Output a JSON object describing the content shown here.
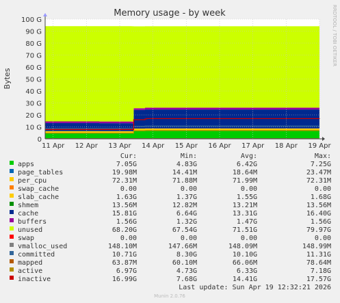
{
  "chart_data": {
    "type": "area",
    "title": "Memory usage - by week",
    "ylabel": "Bytes",
    "side_label": "RRDTOOL / TOBI OETIKER",
    "y_ticks": [
      "0",
      "10 G",
      "20 G",
      "30 G",
      "40 G",
      "50 G",
      "60 G",
      "70 G",
      "80 G",
      "90 G",
      "100 G"
    ],
    "ylim": [
      0,
      100
    ],
    "x_ticks": [
      "11 Apr",
      "12 Apr",
      "13 Apr",
      "14 Apr",
      "15 Apr",
      "16 Apr",
      "17 Apr",
      "18 Apr",
      "19 Apr"
    ],
    "x": [
      0,
      1.6,
      1.63,
      2.6,
      2.66,
      3.0,
      3.05,
      3.2,
      7.0,
      8.24
    ],
    "series": [
      {
        "name": "apps",
        "color": "#00cc00",
        "values": [
          5.0,
          5.0,
          4.9,
          4.85,
          6.9,
          7.0,
          7.0,
          7.0,
          7.0,
          7.05
        ]
      },
      {
        "name": "page_tables",
        "color": "#0066b3",
        "values": [
          0.015,
          0.015,
          0.015,
          0.015,
          0.02,
          0.02,
          0.02,
          0.02,
          0.02,
          0.02
        ]
      },
      {
        "name": "per_cpu",
        "color": "#ffcc00",
        "values": [
          0.07,
          0.07,
          0.07,
          0.07,
          0.07,
          0.07,
          0.07,
          0.07,
          0.07,
          0.07
        ]
      },
      {
        "name": "swap_cache",
        "color": "#ff8000",
        "values": [
          0,
          0,
          0,
          0,
          0,
          0,
          0,
          0,
          0,
          0
        ]
      },
      {
        "name": "slab_cache",
        "color": "#ffcc00",
        "values": [
          1.4,
          1.4,
          1.4,
          1.4,
          1.6,
          1.6,
          1.6,
          1.6,
          1.6,
          1.63
        ]
      },
      {
        "name": "shmem",
        "color": "#008f00",
        "values": [
          0.013,
          0.013,
          0.013,
          0.013,
          0.013,
          0.013,
          0.013,
          0.013,
          0.013,
          0.013
        ]
      },
      {
        "name": "cache",
        "color": "#00298f",
        "values": [
          6.7,
          6.7,
          6.7,
          6.7,
          15.5,
          15.8,
          15.8,
          15.8,
          15.8,
          15.8
        ]
      },
      {
        "name": "buffers",
        "color": "#990099",
        "values": [
          1.4,
          1.4,
          1.4,
          1.4,
          1.5,
          1.55,
          1.56,
          1.56,
          1.56,
          1.56
        ]
      },
      {
        "name": "unused",
        "color": "#ccff00",
        "values": [
          79.5,
          79.5,
          79.6,
          79.6,
          68.4,
          68.0,
          68.0,
          68.0,
          68.0,
          68.2
        ]
      },
      {
        "name": "swap",
        "color": "#ff0000",
        "values": [
          0,
          0,
          0,
          0,
          0,
          0,
          0,
          0,
          0,
          0
        ]
      }
    ],
    "lines": [
      {
        "name": "vmalloc_used",
        "color": "#808080",
        "values": [
          0.148,
          0.148,
          0.148,
          0.148,
          0.148,
          0.148,
          0.148,
          0.148,
          0.148,
          0.148
        ]
      },
      {
        "name": "committed",
        "color": "#336699",
        "values": [
          8.6,
          8.6,
          8.6,
          8.6,
          10.5,
          10.7,
          10.7,
          10.7,
          10.7,
          10.71
        ]
      },
      {
        "name": "mapped",
        "color": "#b35a00",
        "values": [
          0.062,
          0.062,
          0.062,
          0.062,
          0.064,
          0.064,
          0.064,
          0.064,
          0.064,
          0.064
        ]
      },
      {
        "name": "active",
        "color": "#b38f00",
        "values": [
          4.8,
          4.8,
          4.8,
          4.8,
          6.8,
          6.9,
          6.95,
          6.97,
          6.97,
          6.97
        ]
      },
      {
        "name": "inactive",
        "color": "#cc0000",
        "values": [
          7.8,
          7.8,
          7.8,
          7.8,
          16.0,
          16.6,
          16.9,
          16.9,
          16.9,
          16.99
        ]
      }
    ],
    "legend_headers": [
      "Cur:",
      "Min:",
      "Avg:",
      "Max:"
    ],
    "legend_rows": [
      {
        "name": "apps",
        "color": "#00cc00",
        "cur": "7.05G",
        "min": "4.83G",
        "avg": "6.42G",
        "max": "7.25G"
      },
      {
        "name": "page_tables",
        "color": "#0066b3",
        "cur": "19.98M",
        "min": "14.41M",
        "avg": "18.64M",
        "max": "23.47M"
      },
      {
        "name": "per_cpu",
        "color": "#ffcc00",
        "cur": "72.31M",
        "min": "71.88M",
        "avg": "71.99M",
        "max": "72.31M"
      },
      {
        "name": "swap_cache",
        "color": "#ff8000",
        "cur": "0.00",
        "min": "0.00",
        "avg": "0.00",
        "max": "0.00"
      },
      {
        "name": "slab_cache",
        "color": "#ffcc00",
        "cur": "1.63G",
        "min": "1.37G",
        "avg": "1.55G",
        "max": "1.68G"
      },
      {
        "name": "shmem",
        "color": "#008f00",
        "cur": "13.56M",
        "min": "12.82M",
        "avg": "13.21M",
        "max": "13.56M"
      },
      {
        "name": "cache",
        "color": "#00298f",
        "cur": "15.81G",
        "min": "6.64G",
        "avg": "13.31G",
        "max": "16.40G"
      },
      {
        "name": "buffers",
        "color": "#990099",
        "cur": "1.56G",
        "min": "1.32G",
        "avg": "1.47G",
        "max": "1.56G"
      },
      {
        "name": "unused",
        "color": "#ccff00",
        "cur": "68.20G",
        "min": "67.54G",
        "avg": "71.51G",
        "max": "79.97G"
      },
      {
        "name": "swap",
        "color": "#ff0000",
        "cur": "0.00",
        "min": "0.00",
        "avg": "0.00",
        "max": "0.00"
      },
      {
        "name": "vmalloc_used",
        "color": "#808080",
        "cur": "148.10M",
        "min": "147.66M",
        "avg": "148.09M",
        "max": "148.99M"
      },
      {
        "name": "committed",
        "color": "#336699",
        "cur": "10.71G",
        "min": "8.30G",
        "avg": "10.10G",
        "max": "11.31G"
      },
      {
        "name": "mapped",
        "color": "#b35a00",
        "cur": "63.87M",
        "min": "60.10M",
        "avg": "66.06M",
        "max": "78.64M"
      },
      {
        "name": "active",
        "color": "#b38f00",
        "cur": "6.97G",
        "min": "4.73G",
        "avg": "6.33G",
        "max": "7.18G"
      },
      {
        "name": "inactive",
        "color": "#cc0000",
        "cur": "16.99G",
        "min": "7.68G",
        "avg": "14.41G",
        "max": "17.57G"
      }
    ],
    "last_update": "Last update: Sun Apr 19 12:32:21 2026",
    "footer": "Munin 2.0.76"
  }
}
